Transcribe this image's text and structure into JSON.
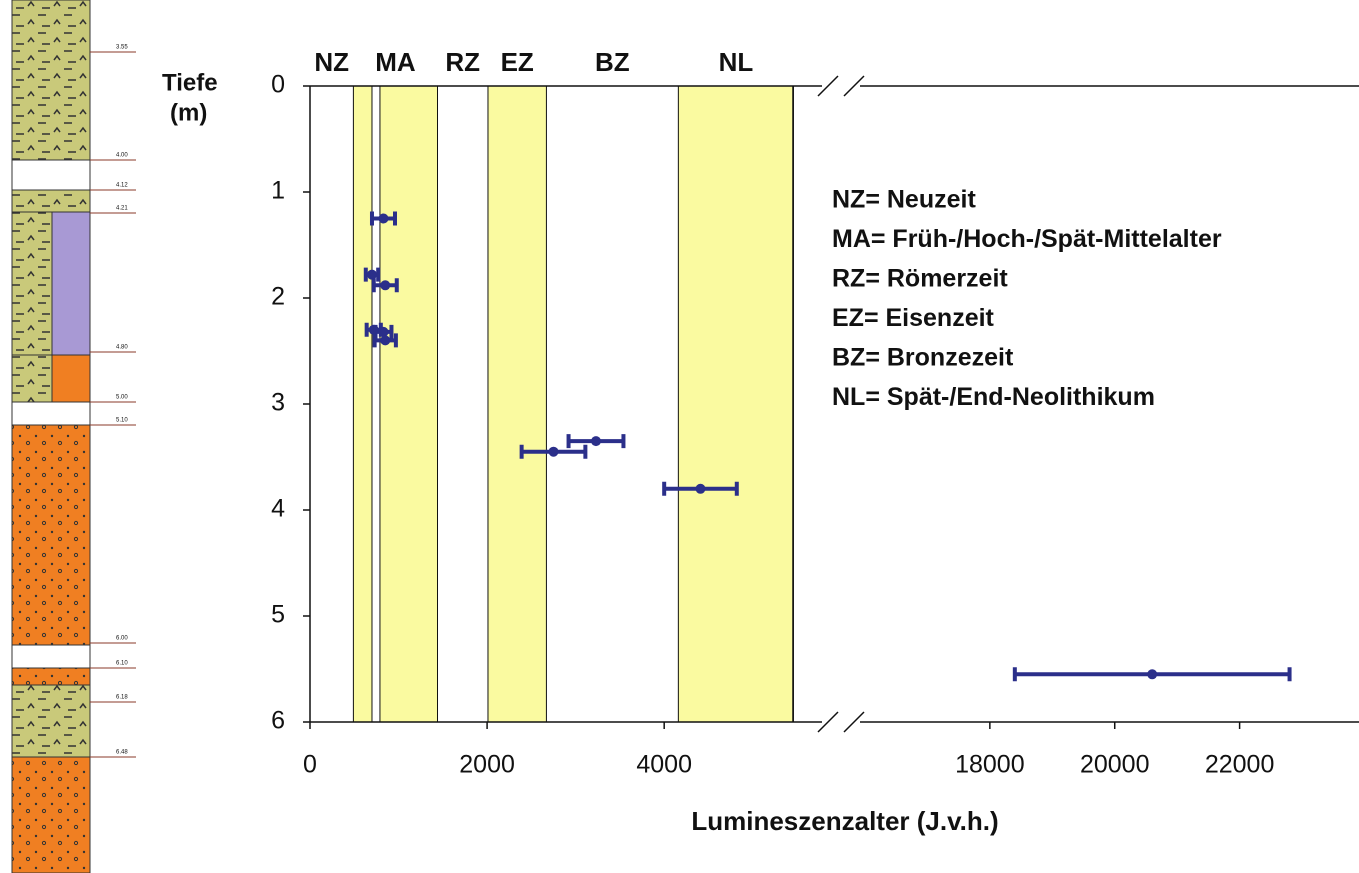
{
  "chart_data": {
    "type": "errorbar",
    "y_label": [
      "Tiefe",
      "(m)"
    ],
    "x_label": "Lumineszenzalter (J.v.h.)",
    "ylim": [
      0,
      6
    ],
    "yticks": [
      0,
      1,
      2,
      3,
      4,
      5,
      6
    ],
    "y_inverted": true,
    "x_segments": [
      {
        "xlim": [
          0,
          5500
        ],
        "xticks": [
          0,
          2000,
          4000
        ]
      },
      {
        "xlim": [
          15600,
          23800
        ],
        "xticks": [
          18000,
          20000,
          22000
        ]
      }
    ],
    "periods": [
      {
        "label": "NZ",
        "from": 0,
        "to": 490
      },
      {
        "label": "MA",
        "from": 490,
        "to": 1440
      },
      {
        "label": "RZ",
        "from": 1440,
        "to": 2010
      },
      {
        "label": "EZ",
        "from": 2010,
        "to": 2670
      },
      {
        "label": "BZ",
        "from": 2670,
        "to": 4160
      },
      {
        "label": "NL",
        "from": 4160,
        "to": 5460
      }
    ],
    "shaded": [
      [
        490,
        700
      ],
      [
        790,
        1440
      ],
      [
        2010,
        2670
      ],
      [
        4160,
        5460
      ]
    ],
    "shade_color": "#fafaa0",
    "color": "#2b2f8a",
    "x": [
      830,
      700,
      850,
      720,
      830,
      850,
      2750,
      3230,
      4410,
      20600
    ],
    "values": [
      1.25,
      1.78,
      1.88,
      2.3,
      2.32,
      2.4,
      3.45,
      3.35,
      3.8,
      5.55
    ],
    "xerr": [
      130,
      70,
      130,
      80,
      90,
      120,
      360,
      310,
      410,
      2200
    ],
    "legend_text": [
      "NZ= Neuzeit",
      "MA= Früh-/Hoch-/Spät-Mittelalter",
      "RZ= Römerzeit",
      "EZ= Eisenzeit",
      "BZ= Bronzezeit",
      "NL= Spät-/End-Neolithikum"
    ]
  },
  "column": {
    "labels": [
      "3.55",
      "4.00",
      "4.12",
      "4.21",
      "4.80",
      "5.00",
      "5.10",
      "6.00",
      "6.10",
      "6.18",
      "6.48"
    ]
  }
}
